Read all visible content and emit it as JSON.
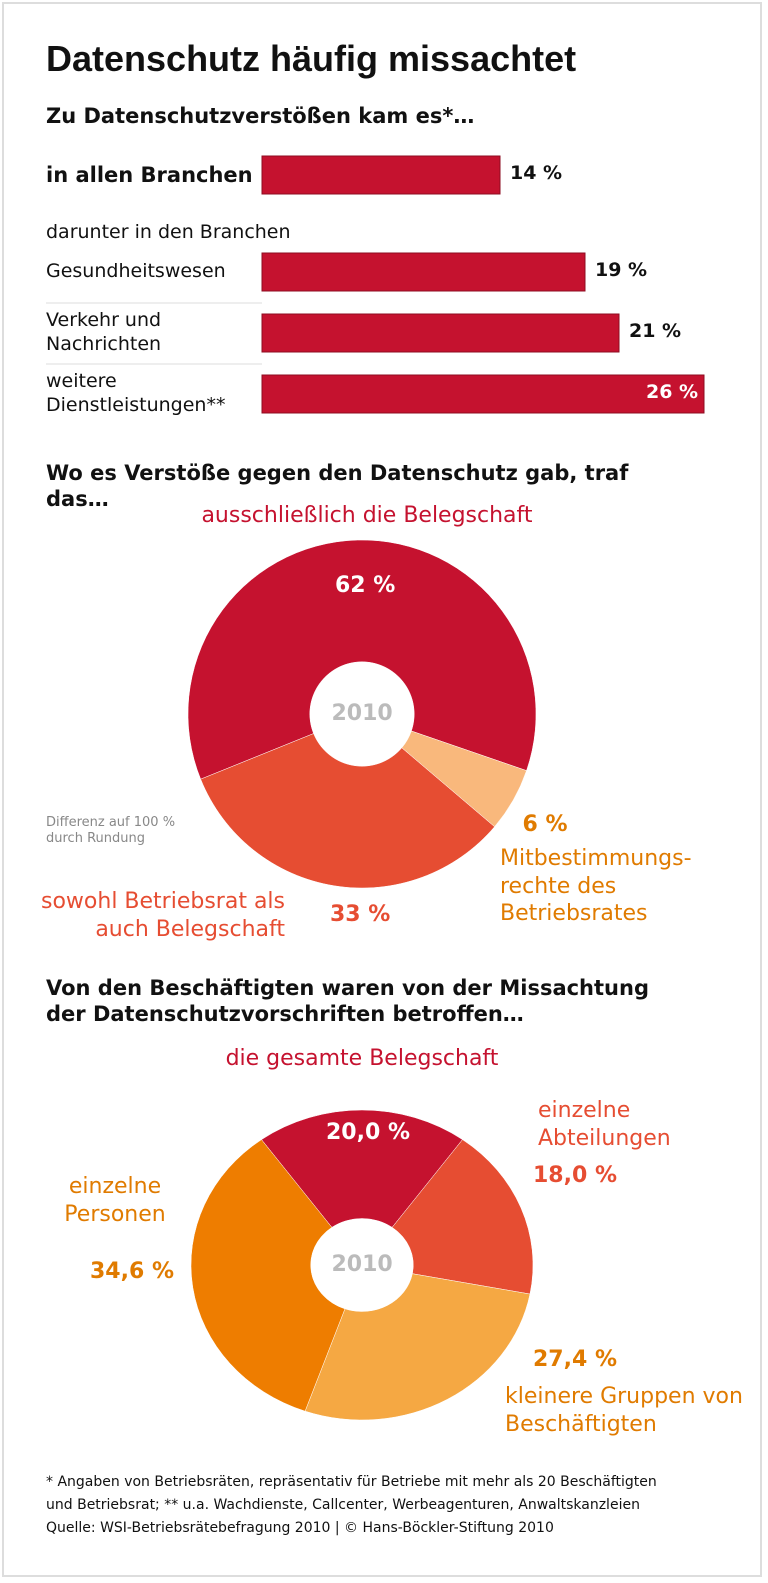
{
  "title": "Datenschutz häufig missachtet",
  "chart_data": [
    {
      "type": "bar",
      "title": "Zu Datenschutzverstößen kam es*…",
      "subtitle": "darunter in den Branchen",
      "categories": [
        "in allen Branchen",
        "Gesundheitswesen",
        "Verkehr und Nachrichten",
        "weitere Dienstleistungen**"
      ],
      "values": [
        14,
        19,
        21,
        26
      ],
      "value_labels": [
        "14 %",
        "19 %",
        "21 %",
        "26 %"
      ],
      "color": "#c5122f"
    },
    {
      "type": "donut",
      "title": "Wo es Verstöße gegen den Datenschutz gab, traf das…",
      "center_label": "2010",
      "categories": [
        "ausschließlich die Belegschaft",
        "Mitbestimmungs- rechte des Betriebsrates",
        "sowohl Betriebsrat als auch Belegschaft"
      ],
      "values": [
        62,
        6,
        33
      ],
      "value_labels": [
        "62 %",
        "6 %",
        "33 %"
      ],
      "colors": [
        "#c5122f",
        "#f9b87c",
        "#e64d32"
      ],
      "note": "Differenz auf 100 % durch Rundung"
    },
    {
      "type": "donut",
      "title": "Von den Beschäftigten waren von der Missachtung der Datenschutzvorschriften betroffen…",
      "center_label": "2010",
      "categories": [
        "die gesamte Belegschaft",
        "einzelne Abteilungen",
        "kleinere Gruppen von Beschäftigten",
        "einzelne Personen"
      ],
      "values": [
        20.0,
        18.0,
        27.4,
        34.6
      ],
      "value_labels": [
        "20,0 %",
        "18,0 %",
        "27,4 %",
        "34,6 %"
      ],
      "colors": [
        "#c5122f",
        "#e64d32",
        "#f5a843",
        "#ee7d00"
      ]
    }
  ],
  "footer": [
    "* Angaben von Betriebsräten, repräsentativ für Betriebe mit mehr als 20 Beschäftigten",
    "und Betriebsrat; ** u.a. Wachdienste, Callcenter, Werbeagenturen, Anwaltskanzleien",
    "Quelle: WSI-Betriebsrätebefragung 2010 | © Hans-Böckler-Stiftung 2010"
  ]
}
